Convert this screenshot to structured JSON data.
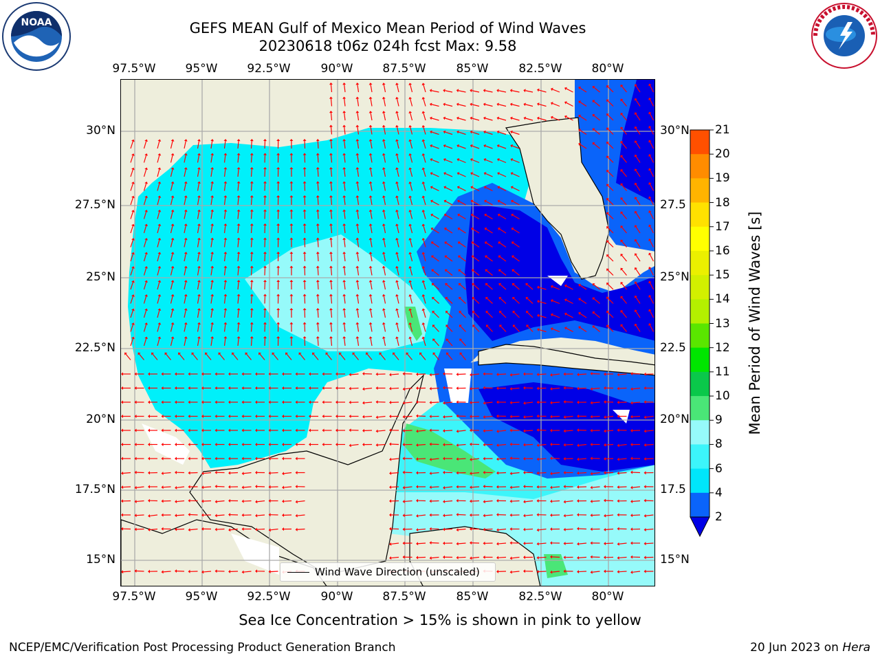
{
  "header": {
    "title_line1": "GEFS MEAN Gulf of Mexico Mean Period of Wind Waves",
    "title_line2": "20230618 t06z 024h fcst   Max: 9.58"
  },
  "logos": {
    "left": "NOAA - National Oceanic and Atmospheric Administration - U.S. Department of Commerce",
    "right": "National Weather Service"
  },
  "map": {
    "lon_ticks": [
      "97.5°W",
      "95°W",
      "92.5°W",
      "90°W",
      "87.5°W",
      "85°W",
      "82.5°W",
      "80°W"
    ],
    "lat_ticks_left": [
      "30°N",
      "27.5°N",
      "25°N",
      "22.5°N",
      "20°N",
      "17.5°N",
      "15°N"
    ],
    "lat_ticks_right": [
      "30°N",
      "27.5",
      "25°N",
      "22.5",
      "20°N",
      "17.5",
      "15°N"
    ],
    "legend_label": "Wind Wave Direction (unscaled)",
    "colors": {
      "land": "#eeeedc",
      "arrow": "#ff0000",
      "grid": "#aaaaaa"
    }
  },
  "colorbar": {
    "label": "Mean Period of Wind Waves [s]",
    "tick_labels": [
      "2",
      "4",
      "6",
      "8",
      "9",
      "10",
      "11",
      "12",
      "13",
      "14",
      "15",
      "16",
      "17",
      "18",
      "19",
      "20",
      "21"
    ],
    "colors": [
      "#0a64fa",
      "#00e6fa",
      "#3cf5fa",
      "#96fafa",
      "#4ae677",
      "#0ac84a",
      "#00e600",
      "#5ae600",
      "#b4f000",
      "#d2f000",
      "#ebf000",
      "#ffff00",
      "#ffe100",
      "#ffb400",
      "#ff8c00",
      "#ff5000",
      "#ff1e00",
      "#ff0000"
    ]
  },
  "footer": {
    "note": "Sea Ice Concentration > 15% is shown in pink to yellow",
    "credit_left": "NCEP/EMC/Verification Post Processing Product Generation Branch",
    "credit_date": "20 Jun 2023 on ",
    "credit_machine": "Hera"
  }
}
